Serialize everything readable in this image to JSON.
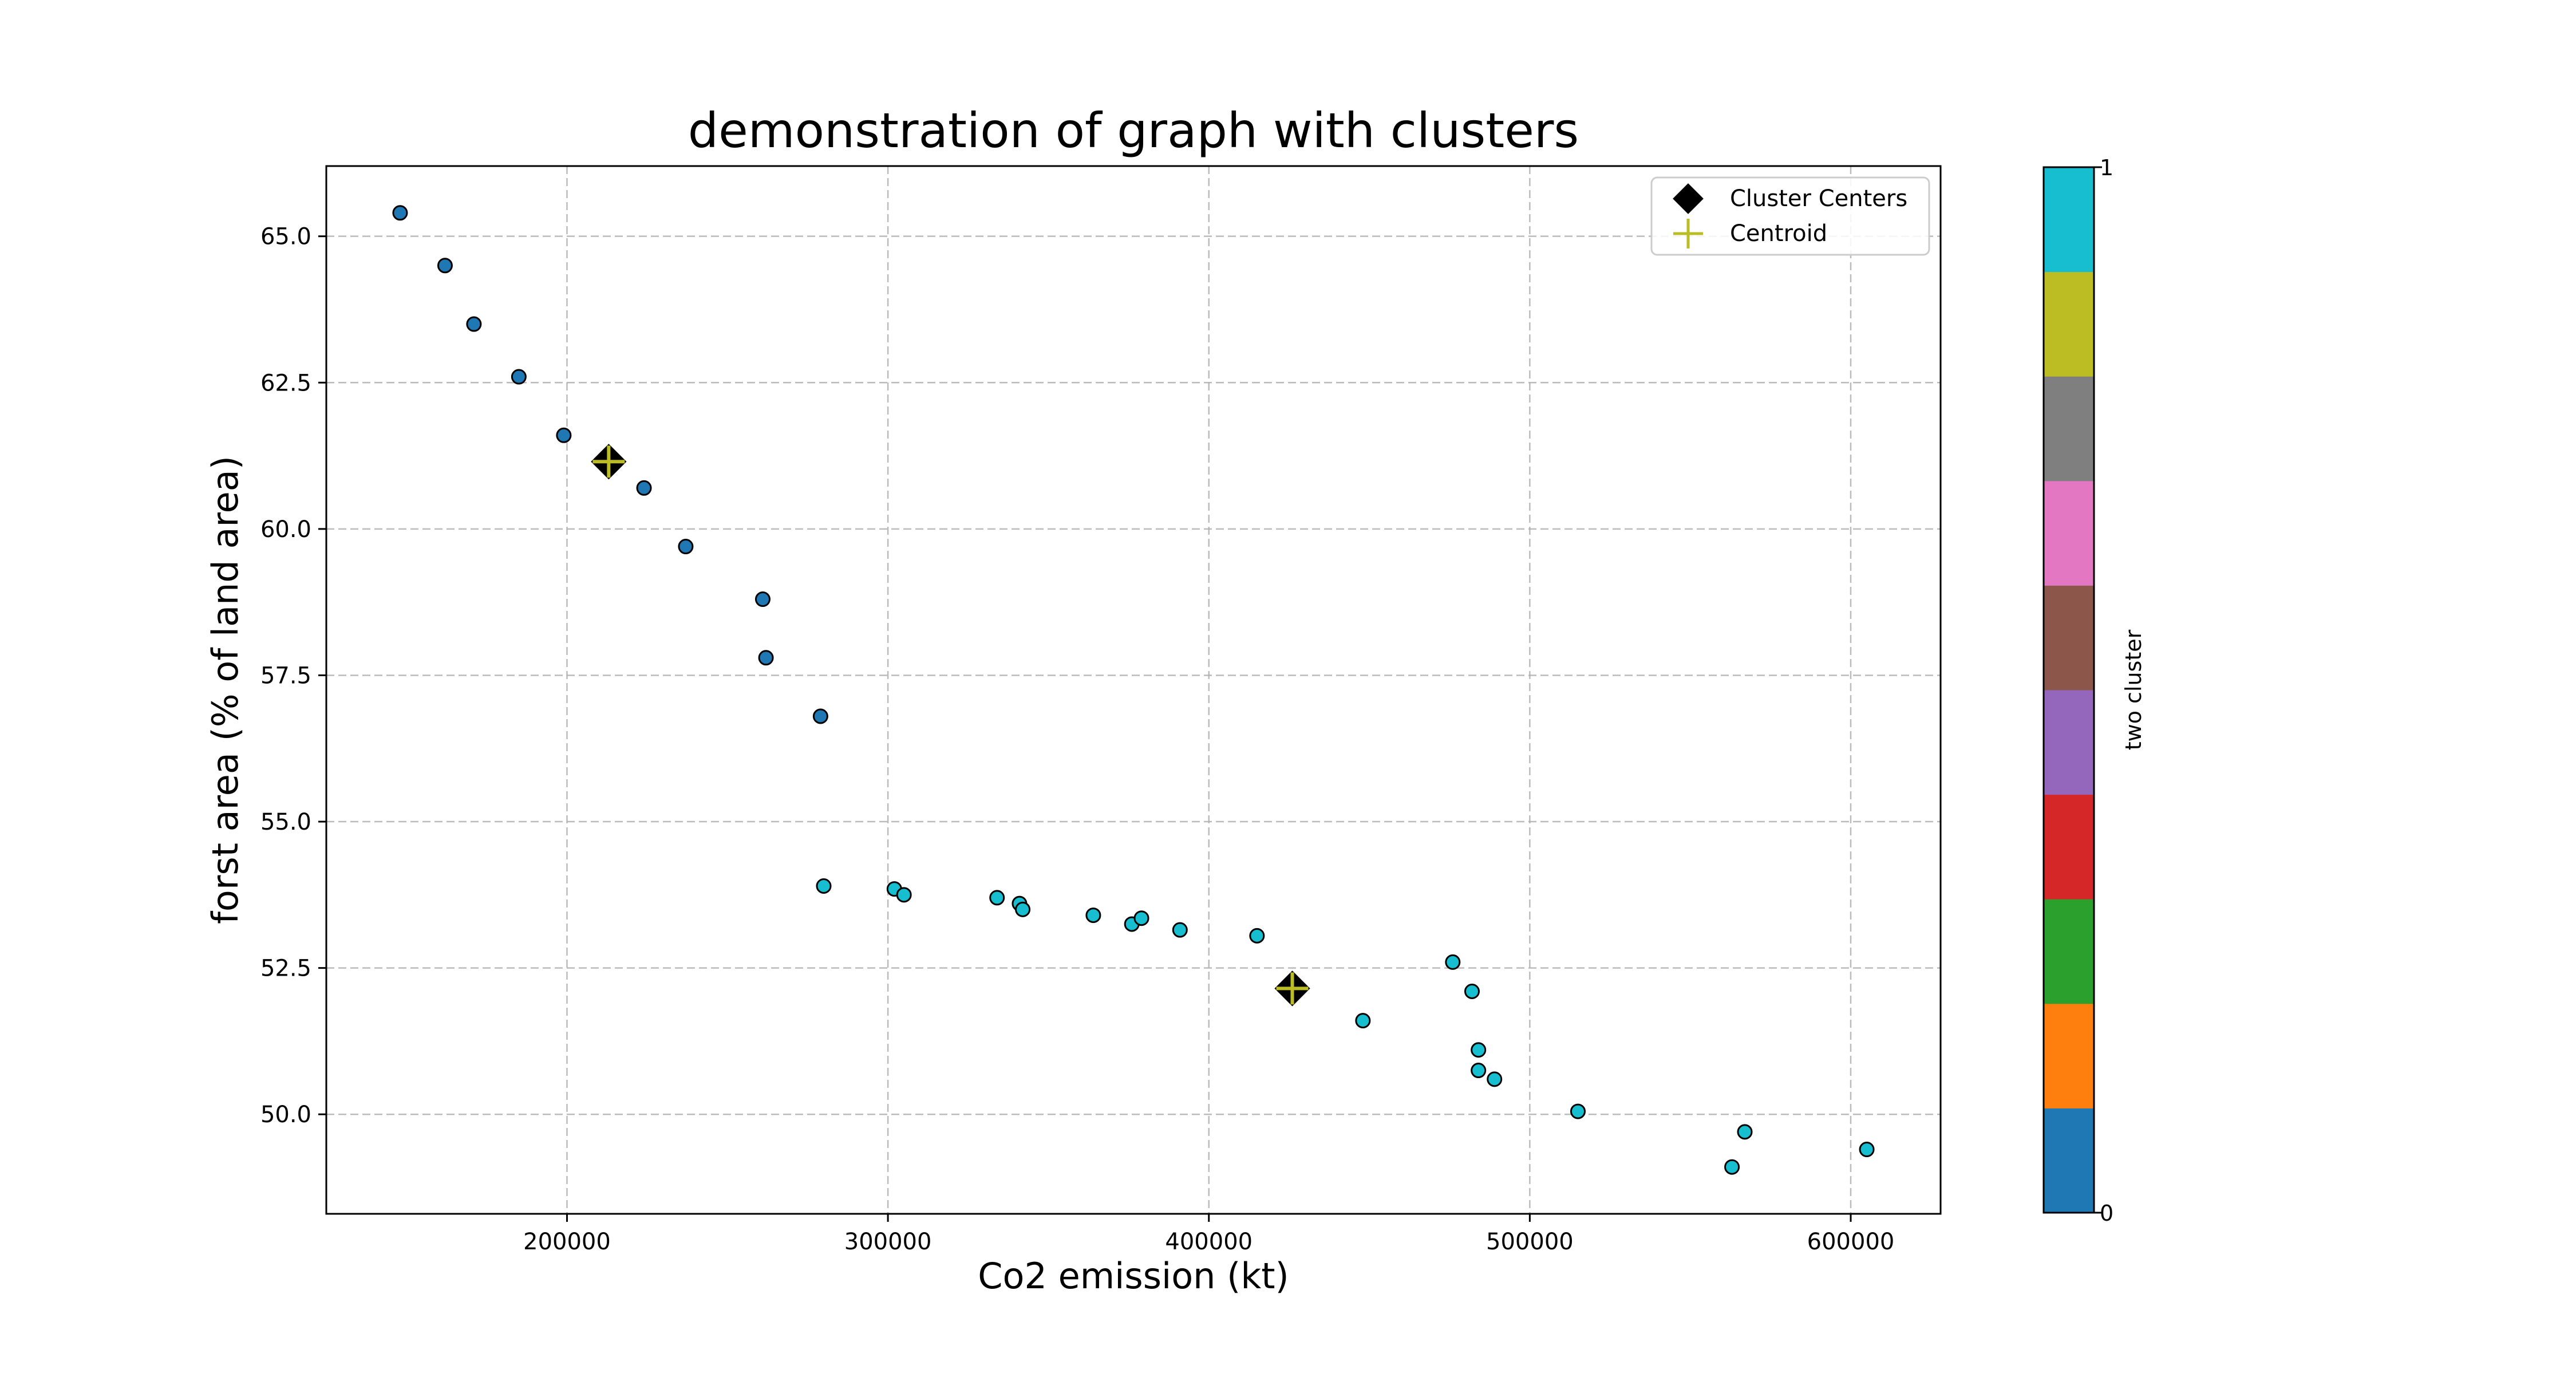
{
  "chart_data": {
    "type": "scatter",
    "title": "demonstration of graph with clusters",
    "xlabel": "Co2 emission (kt)",
    "ylabel": "forst area (% of land area)",
    "xlim": [
      125000,
      628000
    ],
    "ylim": [
      48.3,
      66.2
    ],
    "xticks": [
      200000,
      300000,
      400000,
      500000,
      600000
    ],
    "yticks": [
      50.0,
      52.5,
      55.0,
      57.5,
      60.0,
      62.5,
      65.0
    ],
    "xtick_labels": [
      "200000",
      "300000",
      "400000",
      "500000",
      "600000"
    ],
    "ytick_labels": [
      "50.0",
      "52.5",
      "55.0",
      "57.5",
      "60.0",
      "62.5",
      "65.0"
    ],
    "grid": true,
    "legend_position": "top-right",
    "legend": [
      {
        "label": "Cluster Centers",
        "marker": "diamond",
        "color": "#000000"
      },
      {
        "label": "Centroid",
        "marker": "plus",
        "color": "#bcbd22"
      }
    ],
    "cluster_colors": [
      "#1f77b4",
      "#17becf"
    ],
    "points": [
      {
        "x": 148000,
        "y": 65.4,
        "cluster": 0
      },
      {
        "x": 162000,
        "y": 64.5,
        "cluster": 0
      },
      {
        "x": 171000,
        "y": 63.5,
        "cluster": 0
      },
      {
        "x": 185000,
        "y": 62.6,
        "cluster": 0
      },
      {
        "x": 199000,
        "y": 61.6,
        "cluster": 0
      },
      {
        "x": 224000,
        "y": 60.7,
        "cluster": 0
      },
      {
        "x": 237000,
        "y": 59.7,
        "cluster": 0
      },
      {
        "x": 261000,
        "y": 58.8,
        "cluster": 0
      },
      {
        "x": 262000,
        "y": 57.8,
        "cluster": 0
      },
      {
        "x": 279000,
        "y": 56.8,
        "cluster": 0
      },
      {
        "x": 280000,
        "y": 53.9,
        "cluster": 1
      },
      {
        "x": 302000,
        "y": 53.85,
        "cluster": 1
      },
      {
        "x": 305000,
        "y": 53.75,
        "cluster": 1
      },
      {
        "x": 334000,
        "y": 53.7,
        "cluster": 1
      },
      {
        "x": 341000,
        "y": 53.6,
        "cluster": 1
      },
      {
        "x": 342000,
        "y": 53.5,
        "cluster": 1
      },
      {
        "x": 364000,
        "y": 53.4,
        "cluster": 1
      },
      {
        "x": 376000,
        "y": 53.25,
        "cluster": 1
      },
      {
        "x": 379000,
        "y": 53.35,
        "cluster": 1
      },
      {
        "x": 391000,
        "y": 53.15,
        "cluster": 1
      },
      {
        "x": 415000,
        "y": 53.05,
        "cluster": 1
      },
      {
        "x": 448000,
        "y": 51.6,
        "cluster": 1
      },
      {
        "x": 476000,
        "y": 52.6,
        "cluster": 1
      },
      {
        "x": 482000,
        "y": 52.1,
        "cluster": 1
      },
      {
        "x": 484000,
        "y": 51.1,
        "cluster": 1
      },
      {
        "x": 484000,
        "y": 50.75,
        "cluster": 1
      },
      {
        "x": 489000,
        "y": 50.6,
        "cluster": 1
      },
      {
        "x": 515000,
        "y": 50.05,
        "cluster": 1
      },
      {
        "x": 567000,
        "y": 49.7,
        "cluster": 1
      },
      {
        "x": 563000,
        "y": 49.1,
        "cluster": 1
      },
      {
        "x": 605000,
        "y": 49.4,
        "cluster": 1
      }
    ],
    "cluster_centers": [
      {
        "x": 213000,
        "y": 61.15
      },
      {
        "x": 426000,
        "y": 52.15
      }
    ],
    "centroids": [
      {
        "x": 213000,
        "y": 61.15
      },
      {
        "x": 426000,
        "y": 52.15
      }
    ],
    "colorbar": {
      "label": "two cluster",
      "min_label": "0",
      "max_label": "1",
      "colors": [
        "#1f77b4",
        "#ff7f0e",
        "#2ca02c",
        "#d62728",
        "#9467bd",
        "#8c564b",
        "#e377c2",
        "#7f7f7f",
        "#bcbd22",
        "#17becf"
      ]
    }
  }
}
